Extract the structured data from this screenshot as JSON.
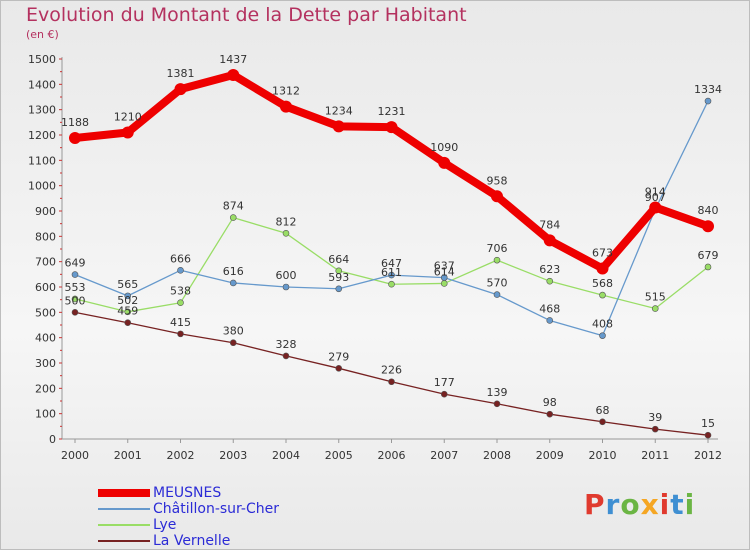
{
  "title": "Evolution du Montant de la Dette par Habitant",
  "unit_label": "(en €)",
  "brand": {
    "letters": [
      "P",
      "r",
      "o",
      "x",
      "i",
      "t",
      "i"
    ],
    "colors": [
      "#e03a2e",
      "#3f8fd2",
      "#6bb544",
      "#f5a623",
      "#e03a2e",
      "#3f8fd2",
      "#6bb544"
    ]
  },
  "chart_data": {
    "type": "line",
    "x": [
      "2000",
      "2001",
      "2002",
      "2003",
      "2004",
      "2005",
      "2006",
      "2007",
      "2008",
      "2009",
      "2010",
      "2011",
      "2012"
    ],
    "ylim": [
      0,
      1500
    ],
    "yticks": [
      0,
      100,
      200,
      300,
      400,
      500,
      600,
      700,
      800,
      900,
      1000,
      1100,
      1200,
      1300,
      1400,
      1500
    ],
    "grid": false,
    "series": [
      {
        "name": "MEUSNES",
        "color": "#ee0000",
        "emphasis": true,
        "values": [
          1188,
          1210,
          1381,
          1437,
          1312,
          1234,
          1231,
          1090,
          958,
          784,
          673,
          914,
          840
        ]
      },
      {
        "name": "Châtillon-sur-Cher",
        "color": "#6699cc",
        "emphasis": false,
        "values": [
          649,
          565,
          666,
          616,
          600,
          593,
          647,
          637,
          570,
          468,
          408,
          907,
          1334
        ]
      },
      {
        "name": "Lye",
        "color": "#99dd66",
        "emphasis": false,
        "values": [
          553,
          502,
          538,
          874,
          812,
          664,
          611,
          614,
          706,
          623,
          568,
          515,
          679
        ]
      },
      {
        "name": "La Vernelle",
        "color": "#772222",
        "emphasis": false,
        "values": [
          500,
          459,
          415,
          380,
          328,
          279,
          226,
          177,
          139,
          98,
          68,
          39,
          15
        ]
      }
    ]
  }
}
